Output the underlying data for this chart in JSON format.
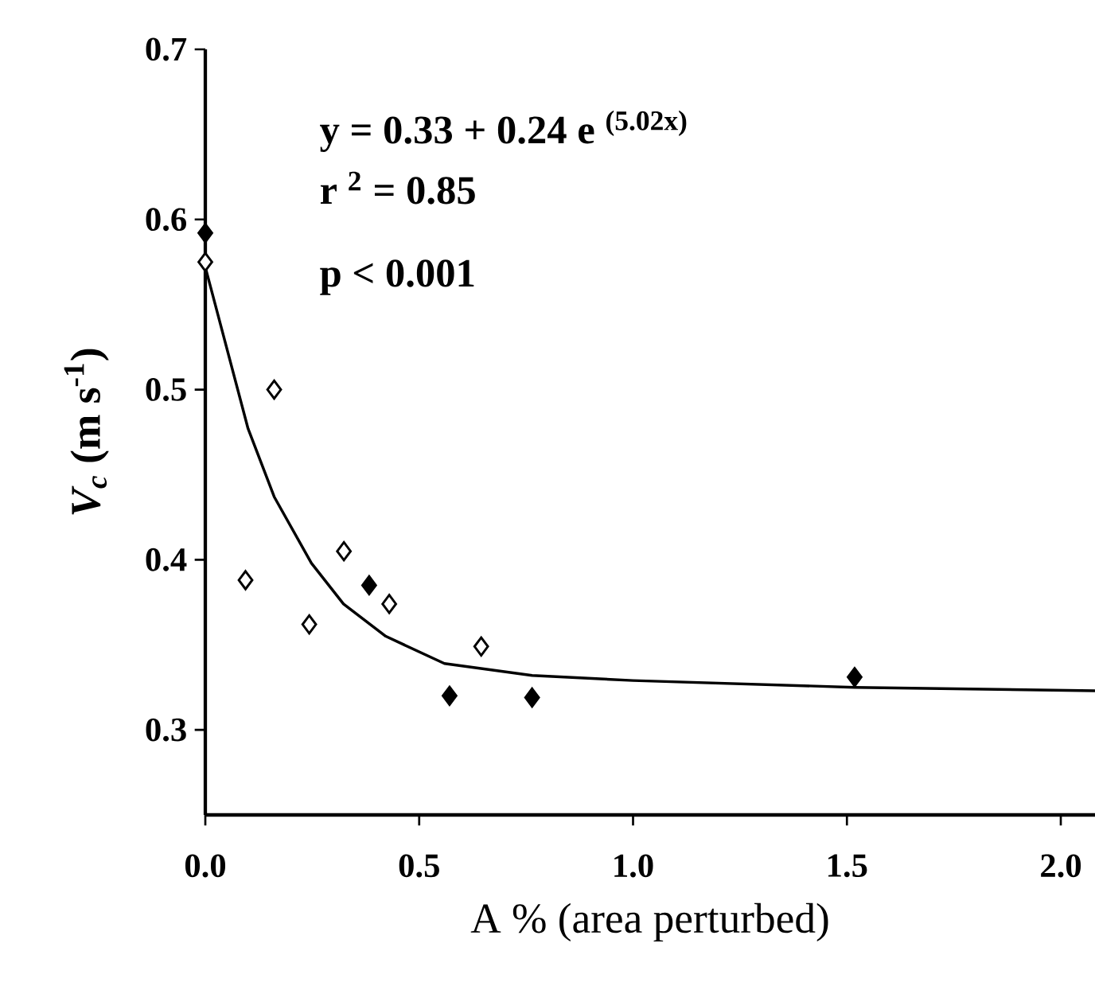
{
  "chart_data": {
    "type": "scatter",
    "xlabel": "A % (area perturbed)",
    "ylabel": "*V$_{c}$* (m s$^{-1}$)",
    "xlim": [
      0,
      2.08
    ],
    "ylim": [
      0.25,
      0.7
    ],
    "xticks": [
      {
        "value": 0,
        "label": "0.0"
      },
      0.5,
      {
        "value": 1,
        "label": "1.0"
      },
      1.5,
      {
        "value": 2,
        "label": "2.0"
      }
    ],
    "yticks": [
      0.3,
      0.4,
      0.5,
      0.6,
      0.7
    ],
    "marker": "diamond",
    "annotations": [
      "y = 0.33 + 0.24 e $^{(5.02x)}$",
      "r $^{2}$ = 0.85",
      "p < 0.001"
    ],
    "series": [
      {
        "color": "#000000",
        "x": [
          0,
          0.383,
          0.571,
          0.764,
          1.518
        ],
        "values": [
          0.592,
          0.385,
          0.32,
          0.319,
          0.331
        ]
      },
      {
        "color": "#ffffff",
        "x": [
          0,
          0.094,
          0.161,
          0.243,
          0.324,
          0.43,
          0.645
        ],
        "values": [
          0.575,
          0.388,
          0.5,
          0.362,
          0.405,
          0.374,
          0.349
        ]
      },
      {
        "type": "line",
        "color": "#000000",
        "marker": "none",
        "x": [
          0,
          0.1,
          0.161,
          0.248,
          0.323,
          0.422,
          0.559,
          0.764,
          1.0,
          1.518,
          2.08
        ],
        "values": [
          0.572,
          0.477,
          0.437,
          0.398,
          0.374,
          0.355,
          0.339,
          0.332,
          0.329,
          0.325,
          0.323
        ]
      }
    ]
  }
}
